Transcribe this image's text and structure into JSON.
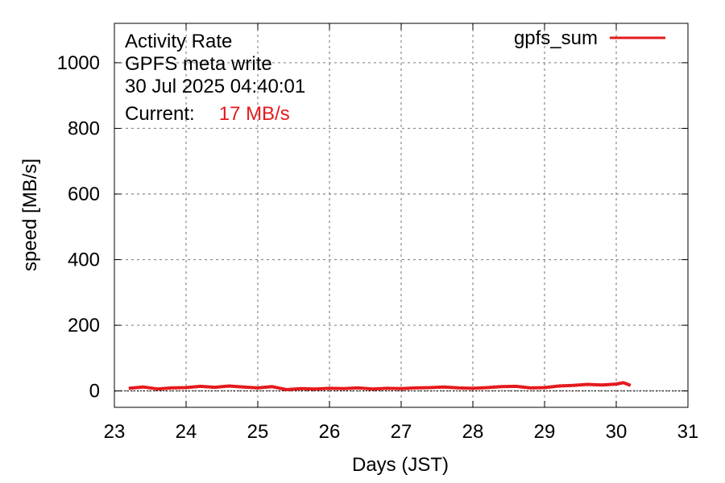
{
  "chart_data": {
    "type": "line",
    "annotation": {
      "lines": [
        "Activity Rate",
        "GPFS meta write",
        "30 Jul 2025 04:40:01"
      ],
      "current_label": "Current:",
      "current_value": "17 MB/s"
    },
    "xlabel": "Days (JST)",
    "ylabel": "speed [MB/s]",
    "xlim": [
      23,
      31
    ],
    "ylim": [
      -50,
      1120
    ],
    "x_ticks": [
      23,
      24,
      25,
      26,
      27,
      28,
      29,
      30,
      31
    ],
    "y_ticks": [
      0,
      200,
      400,
      600,
      800,
      1000
    ],
    "grid": true,
    "legend_position": "top-right",
    "series": [
      {
        "name": "gpfs_sum",
        "color": "#e41a1c",
        "x": [
          23.2,
          23.4,
          23.6,
          23.8,
          24.0,
          24.2,
          24.4,
          24.6,
          24.8,
          25.0,
          25.2,
          25.4,
          25.6,
          25.8,
          26.0,
          26.2,
          26.4,
          26.6,
          26.8,
          27.0,
          27.2,
          27.4,
          27.6,
          27.8,
          28.0,
          28.2,
          28.4,
          28.6,
          28.8,
          29.0,
          29.2,
          29.4,
          29.6,
          29.8,
          30.0,
          30.1,
          30.2
        ],
        "y": [
          8,
          12,
          6,
          9,
          10,
          14,
          11,
          15,
          12,
          9,
          13,
          4,
          7,
          6,
          8,
          7,
          9,
          6,
          8,
          7,
          9,
          10,
          12,
          9,
          8,
          10,
          13,
          14,
          9,
          10,
          15,
          17,
          20,
          18,
          21,
          25,
          17
        ]
      }
    ]
  }
}
